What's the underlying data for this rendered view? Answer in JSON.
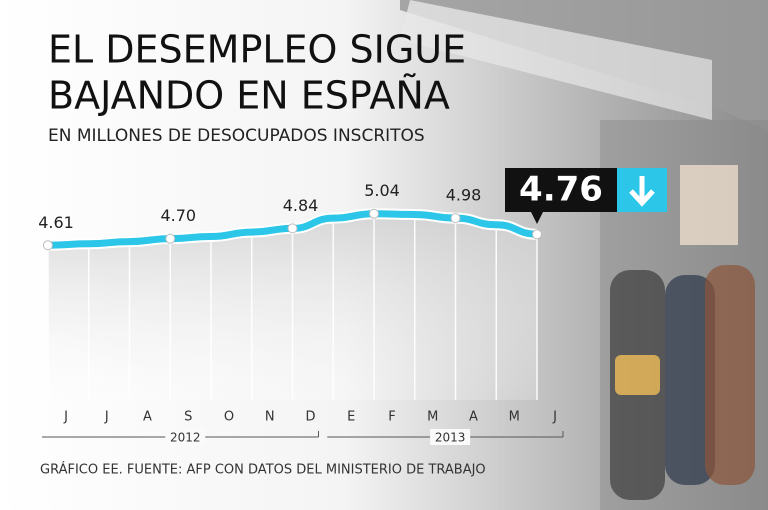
{
  "chart_data": {
    "type": "line",
    "title_lines": [
      "EL DESEMPLEO SIGUE",
      "BAJANDO EN ESPAÑA"
    ],
    "subtitle": "EN MILLONES DE DESOCUPADOS INSCRITOS",
    "categories": [
      "J",
      "J",
      "A",
      "S",
      "O",
      "N",
      "D",
      "E",
      "F",
      "M",
      "A",
      "M",
      "J"
    ],
    "years": [
      {
        "label": "2012",
        "from": 0,
        "to": 6
      },
      {
        "label": "2013",
        "from": 7,
        "to": 12
      }
    ],
    "series": [
      {
        "name": "Desocupados inscritos",
        "color": "#2cc6e8",
        "values": [
          4.61,
          4.63,
          4.66,
          4.7,
          4.73,
          4.79,
          4.84,
          4.98,
          5.04,
          5.03,
          4.98,
          4.89,
          4.76
        ],
        "value_labels": [
          "4.61",
          null,
          null,
          "4.70",
          null,
          null,
          "4.84",
          null,
          "5.04",
          null,
          "4.98",
          null,
          "4.76"
        ]
      }
    ],
    "highlight_index": 12,
    "ylim": [
      2.5,
      5.5
    ],
    "source": "GRÁFICO EE. FUENTE: AFP CON DATOS DEL MINISTERIO DE TRABAJO"
  }
}
